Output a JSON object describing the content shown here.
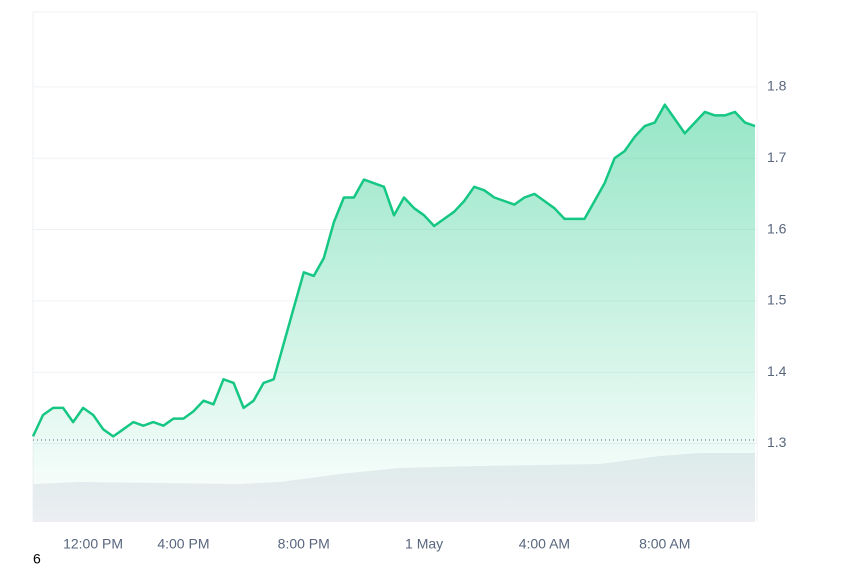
{
  "chart_data": {
    "type": "area",
    "categories": [
      null,
      null,
      null,
      "12:00 PM",
      null,
      null,
      null,
      null,
      null,
      null,
      null,
      null,
      null,
      null,
      null,
      "4:00 PM",
      null,
      null,
      null,
      null,
      null,
      null,
      null,
      null,
      null,
      null,
      null,
      "8:00 PM",
      null,
      null,
      null,
      null,
      null,
      null,
      null,
      null,
      null,
      null,
      null,
      "1 May",
      null,
      null,
      null,
      null,
      null,
      null,
      null,
      null,
      null,
      null,
      null,
      "4:00 AM",
      null,
      null,
      null,
      null,
      null,
      null,
      null,
      null,
      null,
      null,
      null,
      "8:00 AM",
      null,
      null,
      null,
      null,
      null,
      null,
      null,
      null,
      null
    ],
    "values": [
      1.31,
      1.34,
      1.35,
      1.35,
      1.33,
      1.35,
      1.34,
      1.32,
      1.31,
      1.32,
      1.33,
      1.325,
      1.33,
      1.325,
      1.335,
      1.335,
      1.345,
      1.36,
      1.355,
      1.39,
      1.385,
      1.35,
      1.36,
      1.385,
      1.39,
      1.44,
      1.49,
      1.54,
      1.535,
      1.56,
      1.61,
      1.645,
      1.645,
      1.67,
      1.665,
      1.66,
      1.62,
      1.645,
      1.63,
      1.62,
      1.605,
      1.615,
      1.625,
      1.64,
      1.66,
      1.655,
      1.645,
      1.64,
      1.635,
      1.645,
      1.65,
      1.64,
      1.63,
      1.615,
      1.615,
      1.615,
      1.64,
      1.665,
      1.7,
      1.71,
      1.73,
      1.745,
      1.75,
      1.775,
      1.755,
      1.735,
      1.75,
      1.765,
      1.76,
      1.76,
      1.765,
      1.75,
      1.745
    ],
    "color": "#16c784",
    "baseline": 1.305,
    "ylim": [
      1.19,
      1.905
    ],
    "yticks": [
      1.3,
      1.4,
      1.5,
      1.6,
      1.7,
      1.8
    ],
    "y_axis_side": "right",
    "grid": true
  },
  "page_label": "6"
}
